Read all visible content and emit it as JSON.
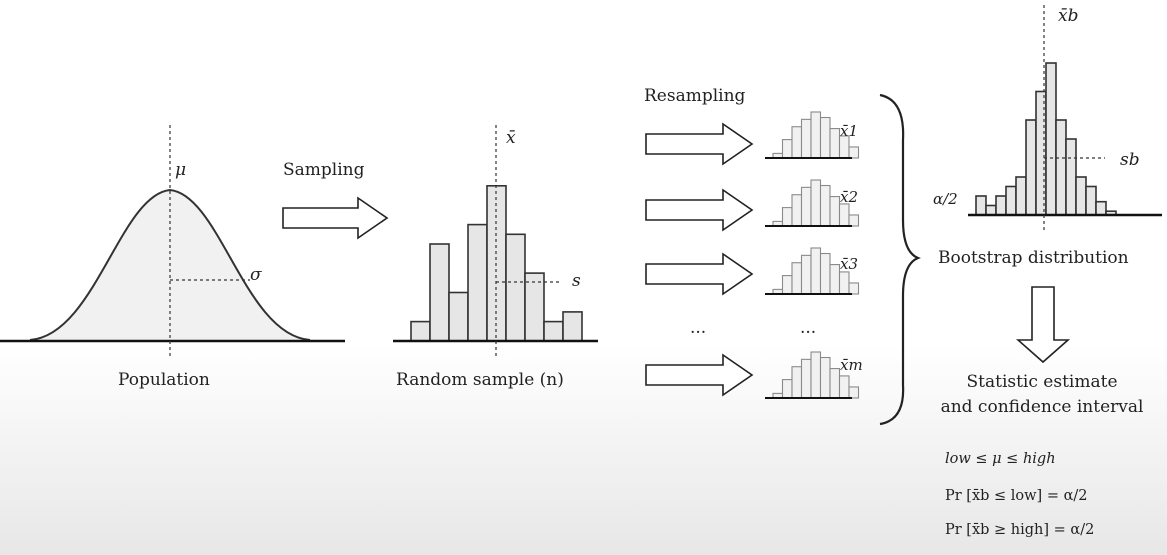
{
  "labels": {
    "mu": "μ",
    "sigma": "σ",
    "population": "Population",
    "sampling": "Sampling",
    "xbar": "x̄",
    "s": "s",
    "random_sample": "Random sample (n)",
    "resampling": "Resampling",
    "xbar_1": "x̄1",
    "xbar_2": "x̄2",
    "xbar_3": "x̄3",
    "xbar_m": "x̄m",
    "dots_1": "...",
    "dots_2": "...",
    "xbar_b": "x̄b",
    "s_b": "sb",
    "alpha_half": "α/2",
    "bootstrap_distribution": "Bootstrap distribution",
    "statistic_line1": "Statistic estimate",
    "statistic_line2": "and confidence interval"
  },
  "formulas": {
    "f1": "low ≤ μ ≤ high",
    "f2": "Pr [x̄b ≤ low] = α/2",
    "f3": "Pr [x̄b ≥ high] = α/2"
  },
  "chart_data": [
    {
      "type": "bar",
      "series": [
        {
          "values": [
            1,
            5,
            2.5,
            6,
            8,
            5.5,
            3.5,
            1,
            1.5
          ]
        }
      ]
    },
    {
      "type": "bar",
      "series": [
        {
          "values": [
            1,
            0.5,
            1,
            1.5,
            2,
            5,
            6.5,
            8,
            5,
            4,
            2,
            1.5,
            0.7,
            0.2
          ]
        }
      ]
    }
  ]
}
